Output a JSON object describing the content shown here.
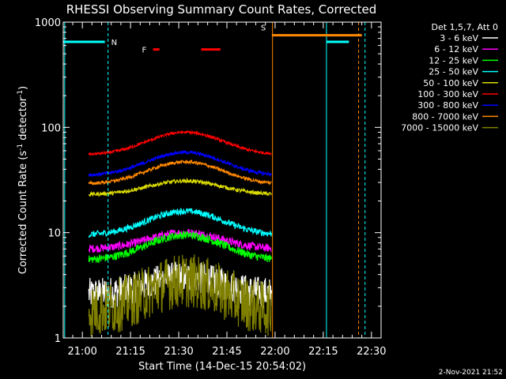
{
  "chart_data": {
    "type": "line",
    "title": "RHESSI Observing Summary Count Rates, Corrected",
    "xlabel": "Start Time (14-Dec-15 20:54:02)",
    "ylabel_main": "Corrected Count Rate (s",
    "ylabel_sup1": "-1",
    "ylabel_mid": " detector",
    "ylabel_sup2": "-1",
    "ylabel_end": ")",
    "x_range": [
      "20:54:02",
      "22:33:00"
    ],
    "y_scale": "log",
    "y_range": [
      1,
      1000
    ],
    "x_ticks": [
      "21:00",
      "21:15",
      "21:30",
      "21:45",
      "22:00",
      "22:15",
      "22:30"
    ],
    "x_tick_minutes": [
      360,
      375,
      390,
      405,
      420,
      435,
      450
    ],
    "y_ticks": [
      "1",
      "10",
      "100",
      "1000"
    ],
    "y_tick_values": [
      1,
      10,
      100,
      1000
    ],
    "legend_header": "Det 1,5,7, Att 0",
    "legend_placement": "right",
    "series": [
      {
        "name": "3 - 6 keV",
        "color": "#ffffff",
        "base": 2.6,
        "peak": 3.8,
        "noise": 0.35,
        "t_start": 362,
        "t_end": 419
      },
      {
        "name": "6 - 12 keV",
        "color": "#ff00ff",
        "base": 7.0,
        "peak": 10.0,
        "noise": 0.09,
        "t_start": 362,
        "t_end": 419
      },
      {
        "name": "12 - 25 keV",
        "color": "#00ff00",
        "base": 5.5,
        "peak": 9.5,
        "noise": 0.09,
        "t_start": 362,
        "t_end": 419
      },
      {
        "name": "25 - 50 keV",
        "color": "#00ffff",
        "base": 9.5,
        "peak": 16.0,
        "noise": 0.07,
        "t_start": 362,
        "t_end": 419
      },
      {
        "name": "50 - 100 keV",
        "color": "#dcdc00",
        "base": 23.0,
        "peak": 31.0,
        "noise": 0.04,
        "t_start": 362,
        "t_end": 419
      },
      {
        "name": "100 - 300 keV",
        "color": "#ff0000",
        "base": 55.0,
        "peak": 90.0,
        "noise": 0.03,
        "t_start": 362,
        "t_end": 419
      },
      {
        "name": "300 - 800 keV",
        "color": "#0000ff",
        "base": 35.0,
        "peak": 58.0,
        "noise": 0.035,
        "t_start": 362,
        "t_end": 419
      },
      {
        "name": "800 - 7000 keV",
        "color": "#ff8800",
        "base": 29.0,
        "peak": 47.0,
        "noise": 0.035,
        "t_start": 362,
        "t_end": 419
      },
      {
        "name": "7000 - 15000 keV",
        "color": "#808000",
        "base": 1.8,
        "peak": 3.5,
        "noise": 0.6,
        "t_start": 362,
        "t_end": 419
      }
    ],
    "annotations": {
      "flare": {
        "label": "F",
        "color": "#ff0000",
        "segments": [
          [
            382,
            384
          ],
          [
            397,
            403
          ]
        ],
        "level": 550
      },
      "saa": {
        "label": "S",
        "color": "#ff8800",
        "t_start": 419,
        "t_end": 447,
        "level": 750
      },
      "night": {
        "label": "N",
        "color": "#00ffff",
        "segments": [
          [
            354,
            367
          ],
          [
            436,
            443
          ]
        ],
        "level": 650
      },
      "vlines": [
        {
          "t": 354.5,
          "color": "#00ffff",
          "dashed": false
        },
        {
          "t": 368,
          "color": "#00ffff",
          "dashed": true
        },
        {
          "t": 419.2,
          "color": "#ff8800",
          "dashed": false
        },
        {
          "t": 436,
          "color": "#00ffff",
          "dashed": false
        },
        {
          "t": 446,
          "color": "#ff8800",
          "dashed": true
        },
        {
          "t": 448,
          "color": "#00ffff",
          "dashed": true
        }
      ]
    }
  },
  "footer_date": "2-Nov-2021 21:52"
}
